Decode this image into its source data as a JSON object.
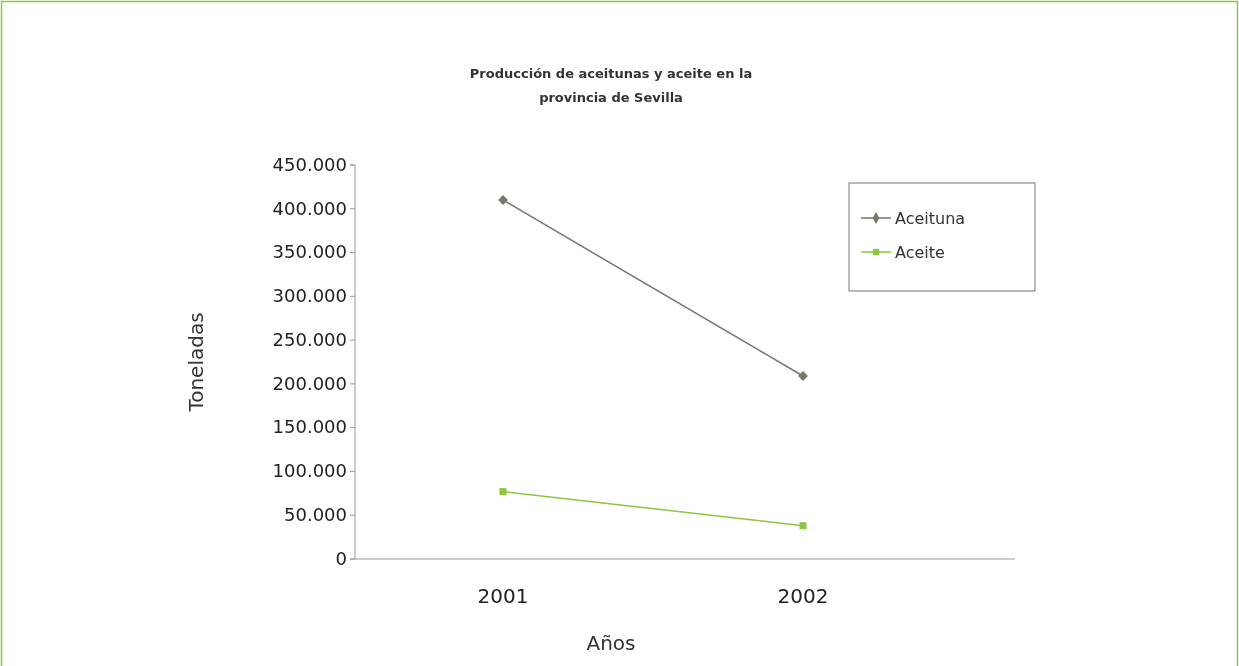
{
  "chart_data": {
    "type": "line",
    "title": "Producción de aceitunas y aceite en la provincia de Sevilla",
    "xlabel": "Años",
    "ylabel": "Toneladas",
    "categories": [
      "2001",
      "2002"
    ],
    "series": [
      {
        "name": "Aceituna",
        "color": "#77776a",
        "marker": "diamond",
        "values": [
          410000,
          209000
        ]
      },
      {
        "name": "Aceite",
        "color": "#8cc63f",
        "marker": "square",
        "values": [
          77000,
          38000
        ]
      }
    ],
    "ylim": [
      0,
      450000
    ],
    "yticks": [
      0,
      {
        "value": 50000,
        "label": "50.000"
      },
      {
        "value": 100000,
        "label": "100.000"
      },
      {
        "value": 150000,
        "label": "150.000"
      },
      {
        "value": 200000,
        "label": "200.000"
      },
      {
        "value": 250000,
        "label": "250.000"
      },
      {
        "value": 300000,
        "label": "300.000"
      },
      {
        "value": 350000,
        "label": "350.000"
      },
      {
        "value": 400000,
        "label": "400.000"
      },
      {
        "value": 450000,
        "label": "450.000"
      }
    ],
    "grid": false,
    "legend": "top right"
  }
}
